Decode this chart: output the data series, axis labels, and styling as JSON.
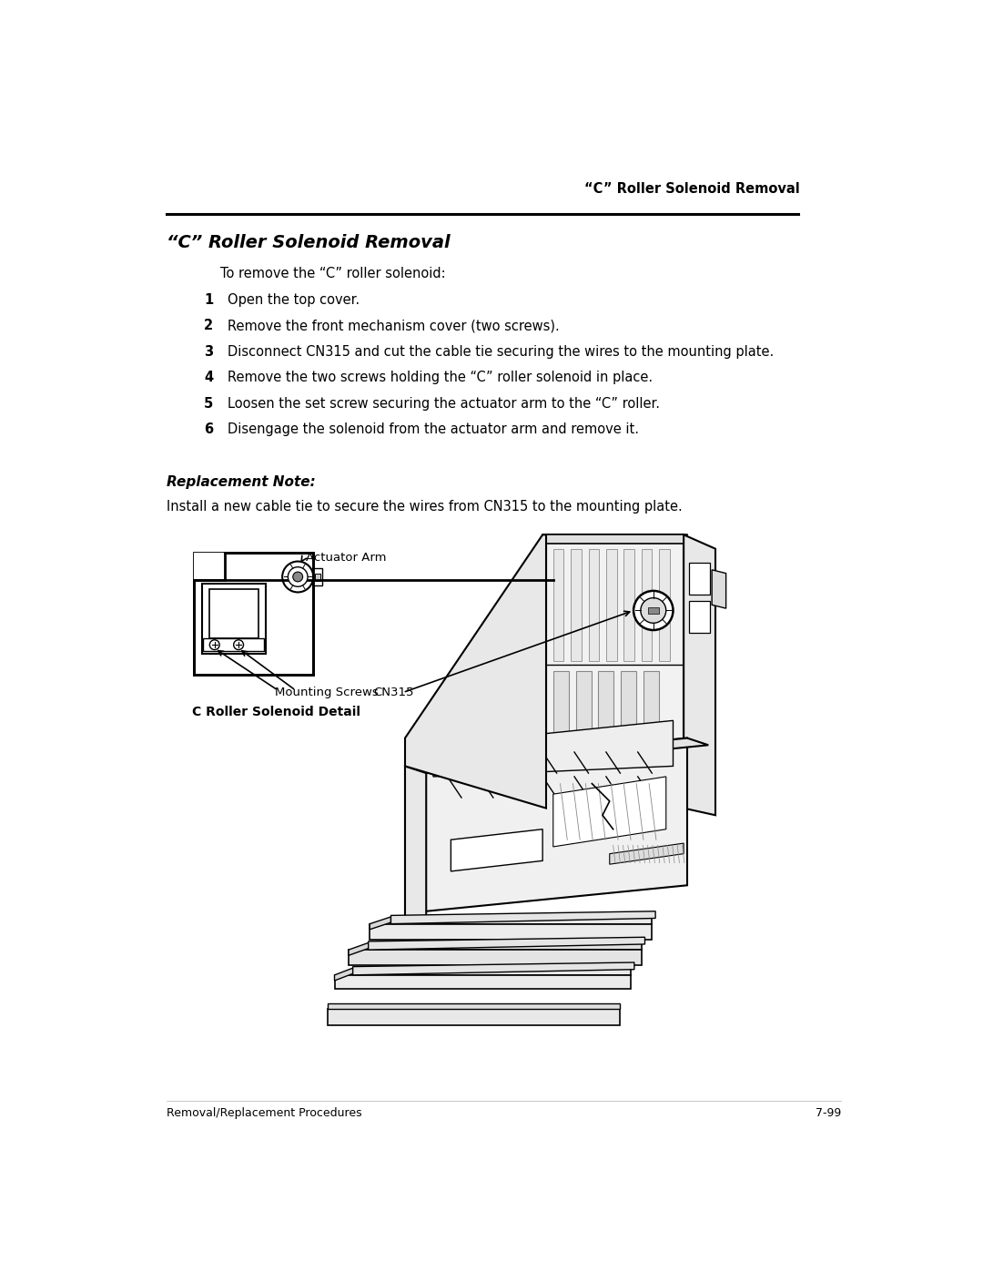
{
  "header_right": "“C” Roller Solenoid Removal",
  "title": "“C” Roller Solenoid Removal",
  "intro_text": "To remove the “C” roller solenoid:",
  "steps": [
    {
      "num": "1",
      "text": "Open the top cover."
    },
    {
      "num": "2",
      "text": "Remove the front mechanism cover (two screws)."
    },
    {
      "num": "3",
      "text": "Disconnect CN315 and cut the cable tie securing the wires to the mounting plate."
    },
    {
      "num": "4",
      "text": "Remove the two screws holding the “C” roller solenoid in place."
    },
    {
      "num": "5",
      "text": "Loosen the set screw securing the actuator arm to the “C” roller."
    },
    {
      "num": "6",
      "text": "Disengage the solenoid from the actuator arm and remove it."
    }
  ],
  "replacement_note_title": "Replacement Note:",
  "replacement_note_text": "Install a new cable tie to secure the wires from CN315 to the mounting plate.",
  "detail_label": "C Roller Solenoid Detail",
  "actuator_arm_label": "Actuator Arm",
  "mounting_screws_label": "Mounting Screws",
  "cn315_label": "CN315",
  "footer_left": "Removal/Replacement Procedures",
  "footer_right": "7-99",
  "bg_color": "#ffffff",
  "text_color": "#000000"
}
